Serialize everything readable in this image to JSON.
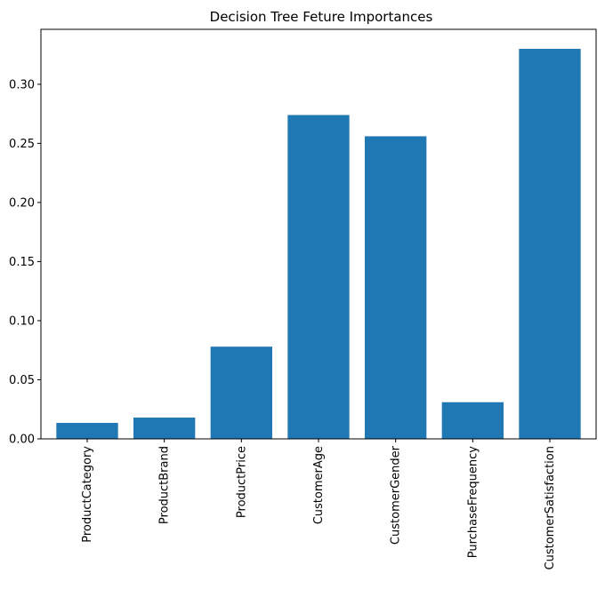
{
  "chart_data": {
    "type": "bar",
    "title": "Decision Tree Feture Importances",
    "xlabel": "",
    "ylabel": "",
    "categories": [
      "ProductCategory",
      "ProductBrand",
      "ProductPrice",
      "CustomerAge",
      "CustomerGender",
      "PurchaseFrequency",
      "CustomerSatisfaction"
    ],
    "values": [
      0.0135,
      0.018,
      0.078,
      0.274,
      0.256,
      0.031,
      0.33
    ],
    "ylim": [
      0,
      0.3465
    ],
    "yticks": [
      0.0,
      0.05,
      0.1,
      0.15,
      0.2,
      0.25,
      0.3
    ],
    "ytick_labels": [
      "0.00",
      "0.05",
      "0.10",
      "0.15",
      "0.20",
      "0.25",
      "0.30"
    ],
    "bar_color": "#1f77b4",
    "grid": false,
    "legend": "none"
  }
}
